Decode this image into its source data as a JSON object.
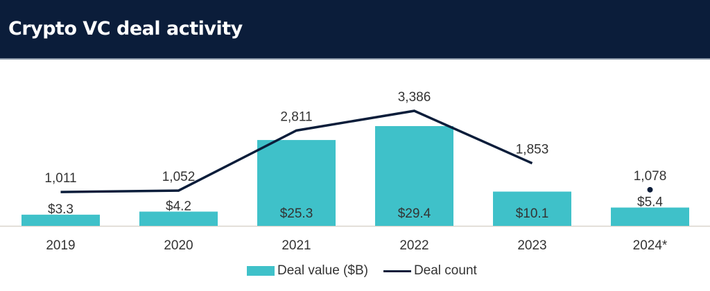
{
  "header": {
    "title": "Crypto VC deal activity"
  },
  "colors": {
    "header_bg": "#0b1d3a",
    "bar": "#3fc1c9",
    "line": "#0b1d3a",
    "baseline": "#d9d4cc"
  },
  "legend": {
    "bar_label": "Deal value ($B)",
    "line_label": "Deal count"
  },
  "chart_data": {
    "type": "bar",
    "title": "Crypto VC deal activity",
    "xlabel": "",
    "ylabel": "",
    "categories": [
      "2019",
      "2020",
      "2021",
      "2022",
      "2023",
      "2024*"
    ],
    "series": [
      {
        "name": "Deal value ($B)",
        "type": "bar",
        "values": [
          3.3,
          4.2,
          25.3,
          29.4,
          10.1,
          5.4
        ],
        "labels": [
          "$3.3",
          "$4.2",
          "$25.3",
          "$29.4",
          "$10.1",
          "$5.4"
        ]
      },
      {
        "name": "Deal count",
        "type": "line",
        "values": [
          1011,
          1052,
          2811,
          3386,
          1853,
          1078
        ],
        "labels": [
          "1,011",
          "1,052",
          "2,811",
          "3,386",
          "1,853",
          "1,078"
        ],
        "connected": [
          true,
          true,
          true,
          true,
          true,
          false
        ]
      }
    ],
    "ylim_bar": [
      0,
      30
    ],
    "ylim_line": [
      0,
      3600
    ],
    "grid": false,
    "legend_position": "bottom"
  }
}
